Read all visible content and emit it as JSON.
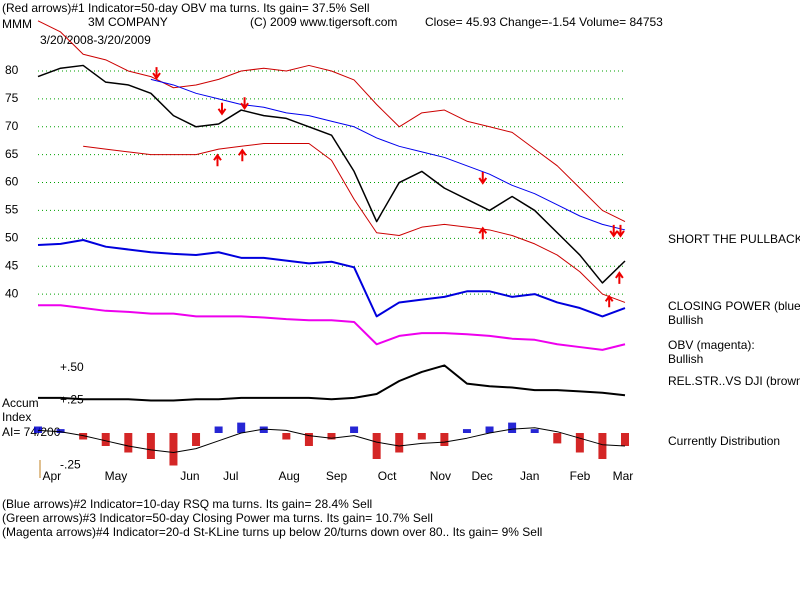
{
  "header": {
    "indicator": "(Red arrows)#1 Indicator=50-day OBV ma turns. Its gain= 37.5% Sell",
    "symbol": "MMM",
    "company": "3M COMPANY",
    "copyright": "(C) 2009 www.tigersoft.com",
    "quote": "Close=  45.93  Change=-1.54 Volume=  84753",
    "range": "3/20/2008-3/20/2009"
  },
  "side_labels": [
    "SHORT THE PULLBACK",
    "CLOSING POWER (blue)",
    "Bullish",
    "OBV (magenta):",
    "Bullish",
    "REL.STR..VS DJI (brown)",
    "Currently Distribution"
  ],
  "left_labels": [
    "Accum",
    "Index",
    "AI= 74/200"
  ],
  "footer": [
    "(Blue arrows)#2 Indicator=10-day RSQ ma turns. Its gain= 28.4% Sell",
    "(Green arrows)#3 Indicator=50-day Closing Power ma turns. Its gain= 10.7% Sell",
    "(Magenta arrows)#4 Indicator=20-d St-KLine turns up below 20/turns down over 80.. Its gain= 9% Sell"
  ],
  "chart_data": [
    {
      "type": "line",
      "x": [
        0,
        2,
        4,
        6,
        8,
        10,
        12,
        14,
        16,
        18,
        20,
        22,
        24,
        26,
        28,
        30,
        32,
        34,
        36,
        38,
        40,
        42,
        44,
        46,
        48,
        50,
        52
      ],
      "xlim": [
        0,
        52
      ],
      "xticks": [
        {
          "value": 0.4,
          "label": "Apr"
        },
        {
          "value": 5.9,
          "label": "May"
        },
        {
          "value": 12.6,
          "label": "Jun"
        },
        {
          "value": 16.4,
          "label": "Jul"
        },
        {
          "value": 21.3,
          "label": "Aug"
        },
        {
          "value": 25.5,
          "label": "Sep"
        },
        {
          "value": 30.1,
          "label": "Oct"
        },
        {
          "value": 34.7,
          "label": "Nov"
        },
        {
          "value": 38.4,
          "label": "Dec"
        },
        {
          "value": 42.7,
          "label": "Jan"
        },
        {
          "value": 47.1,
          "label": "Feb"
        },
        {
          "value": 50.9,
          "label": "Mar"
        }
      ],
      "ylim": [
        28,
        90
      ],
      "yticks": [
        80,
        75,
        70,
        65,
        60,
        55,
        50,
        45,
        40
      ],
      "grid": true,
      "series": [
        {
          "color": "#000000",
          "width": 1.5,
          "values": [
            79,
            80.5,
            81,
            78,
            77.5,
            76,
            72,
            70,
            70.5,
            73,
            72,
            71.5,
            70,
            68.5,
            62,
            53,
            60,
            62,
            59,
            57,
            55,
            57.5,
            55,
            51,
            47,
            42,
            45.93
          ]
        },
        {
          "color": "#cc0000",
          "width": 1,
          "values": [
            89,
            87,
            83,
            82,
            80,
            79,
            77,
            77.5,
            78.5,
            80,
            80.5,
            80,
            81,
            80,
            78.4,
            74,
            70,
            72.5,
            73,
            71,
            70,
            69,
            66,
            63,
            59,
            55,
            53
          ]
        },
        {
          "color": "#cc0000",
          "width": 1,
          "values": [
            null,
            null,
            66.5,
            66,
            65.5,
            65,
            65,
            65,
            66,
            66.5,
            67,
            67,
            67,
            64,
            57,
            51,
            50.5,
            52,
            52.5,
            52,
            51.5,
            50.5,
            49,
            47,
            44,
            40,
            38.5
          ]
        },
        {
          "color": "#0000ee",
          "width": 1,
          "values": [
            null,
            null,
            null,
            null,
            null,
            78.5,
            77.5,
            76,
            75,
            74,
            73.5,
            72.5,
            72,
            71,
            70,
            68,
            66.5,
            65.5,
            64.5,
            63,
            61.5,
            59.5,
            58,
            56,
            54,
            52.5,
            51.5
          ]
        },
        {
          "color": "#0000dd",
          "width": 2,
          "values": [
            48.8,
            49,
            49.7,
            48.5,
            48,
            47.5,
            47.2,
            47,
            47.5,
            46.5,
            46.5,
            46,
            45.5,
            45.8,
            44.8,
            36,
            38.5,
            39,
            39.5,
            40.5,
            40.5,
            39.5,
            40,
            38.5,
            37.5,
            36,
            37.5
          ]
        },
        {
          "color": "#ee00ee",
          "width": 2,
          "values": [
            38,
            38,
            37.5,
            37,
            36.8,
            36.5,
            36.5,
            36,
            36,
            36,
            35.8,
            35.5,
            35.3,
            35.3,
            35,
            31,
            32.5,
            33,
            33,
            32.8,
            32.5,
            32,
            31.8,
            31,
            30.5,
            30,
            31
          ]
        }
      ],
      "arrow_color": "#ee0000",
      "arrows": [
        {
          "x": 10.5,
          "y": 80.7,
          "direction": "down"
        },
        {
          "x": 16.3,
          "y": 74.3,
          "direction": "down"
        },
        {
          "x": 15.9,
          "y": 64.9,
          "direction": "up"
        },
        {
          "x": 18.1,
          "y": 65.8,
          "direction": "up"
        },
        {
          "x": 18.3,
          "y": 75.3,
          "direction": "down"
        },
        {
          "x": 39.4,
          "y": 61.9,
          "direction": "down"
        },
        {
          "x": 39.4,
          "y": 51.8,
          "direction": "up"
        },
        {
          "x": 51,
          "y": 52.4,
          "direction": "down"
        },
        {
          "x": 51.6,
          "y": 52.4,
          "direction": "down"
        },
        {
          "x": 51.5,
          "y": 43.8,
          "direction": "up"
        },
        {
          "x": 50.6,
          "y": 39.6,
          "direction": "up"
        }
      ]
    },
    {
      "type": "line",
      "x": [
        0,
        2,
        4,
        6,
        8,
        10,
        12,
        14,
        16,
        18,
        20,
        22,
        24,
        26,
        28,
        30,
        32,
        34,
        36,
        38,
        40,
        42,
        44,
        46,
        48,
        50,
        52
      ],
      "xlim": [
        0,
        52
      ],
      "ylim": [
        -0.3,
        0.6
      ],
      "yticks": [
        {
          "value": 0.5,
          "label": "+.50"
        },
        {
          "value": 0.25,
          "label": "+.25"
        },
        {
          "value": -0.25,
          "label": "-.25"
        }
      ],
      "grid": false,
      "series": [
        {
          "type": "bar",
          "color": "#cc0000",
          "positive_color": "#0000cc",
          "values": [
            0.05,
            0.03,
            -0.05,
            -0.1,
            -0.15,
            -0.2,
            -0.25,
            -0.1,
            0.05,
            0.08,
            0.05,
            -0.05,
            -0.1,
            -0.05,
            0.05,
            -0.2,
            -0.15,
            -0.05,
            -0.1,
            0.03,
            0.05,
            0.08,
            0.03,
            -0.08,
            -0.15,
            -0.2,
            -0.1
          ]
        },
        {
          "type": "line",
          "color": "#000000",
          "width": 1,
          "values": [
            0.02,
            0.01,
            -0.02,
            -0.06,
            -0.1,
            -0.13,
            -0.15,
            -0.12,
            -0.06,
            0,
            0.03,
            0.02,
            -0.02,
            -0.04,
            -0.02,
            -0.07,
            -0.1,
            -0.08,
            -0.07,
            -0.04,
            0,
            0.03,
            0.04,
            0.01,
            -0.04,
            -0.09,
            -0.1
          ]
        },
        {
          "type": "line",
          "color": "#000000",
          "width": 2,
          "values": [
            0.27,
            0.27,
            0.26,
            0.26,
            0.26,
            0.25,
            0.25,
            0.26,
            0.26,
            0.27,
            0.27,
            0.27,
            0.27,
            0.26,
            0.27,
            0.3,
            0.4,
            0.47,
            0.52,
            0.38,
            0.36,
            0.35,
            0.33,
            0.33,
            0.32,
            0.31,
            0.29
          ]
        }
      ]
    }
  ]
}
